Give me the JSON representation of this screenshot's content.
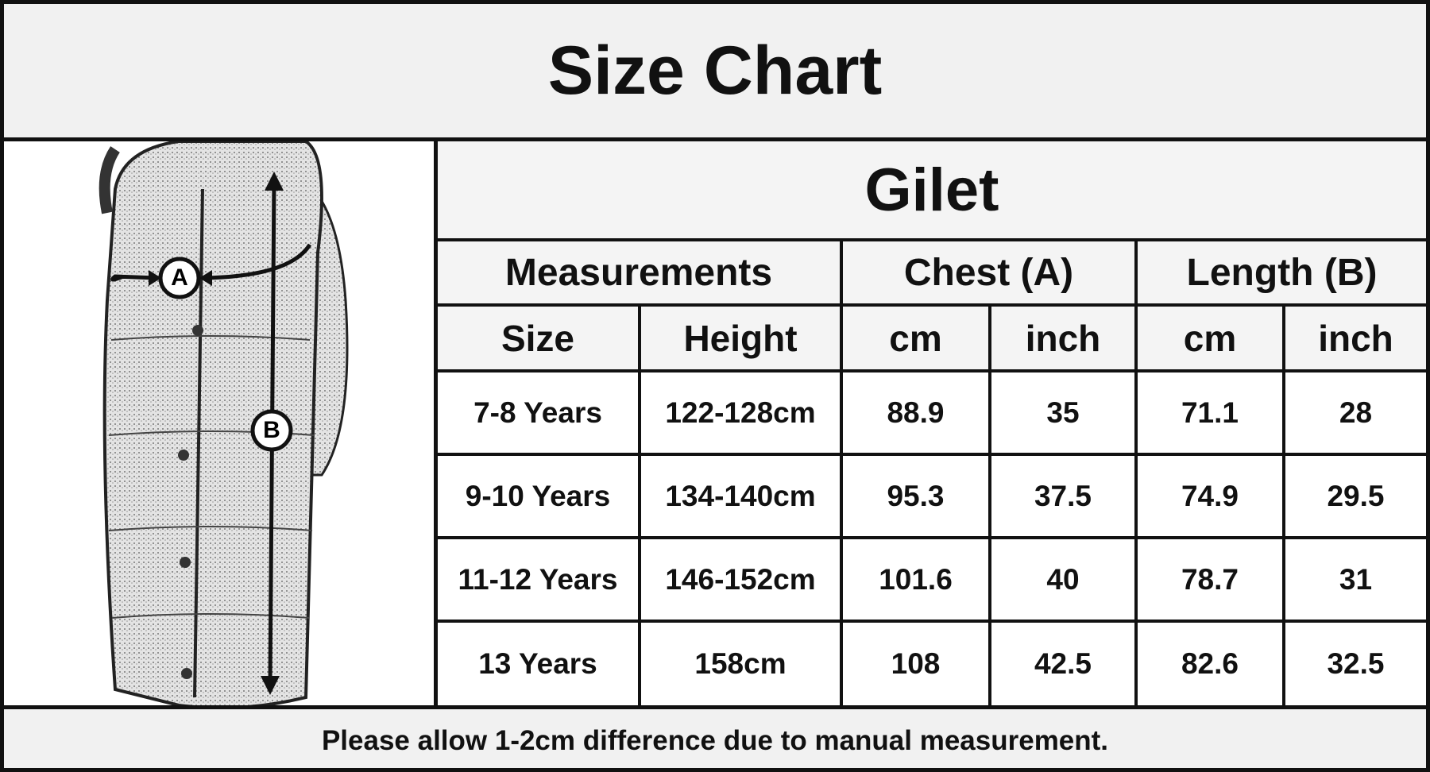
{
  "header": {
    "title": "Size Chart"
  },
  "illustration": {
    "labels": [
      "A",
      "B"
    ]
  },
  "table": {
    "title": "Gilet",
    "group_headers": [
      "Measurements",
      "Chest (A)",
      "Length (B)"
    ],
    "column_headers": [
      "Size",
      "Height",
      "cm",
      "inch",
      "cm",
      "inch"
    ],
    "rows": [
      [
        "7-8 Years",
        "122-128cm",
        "88.9",
        "35",
        "71.1",
        "28"
      ],
      [
        "9-10 Years",
        "134-140cm",
        "95.3",
        "37.5",
        "74.9",
        "29.5"
      ],
      [
        "11-12 Years",
        "146-152cm",
        "101.6",
        "40",
        "78.7",
        "31"
      ],
      [
        "13 Years",
        "158cm",
        "108",
        "42.5",
        "82.6",
        "32.5"
      ]
    ]
  },
  "footer": {
    "note": "Please allow 1-2cm difference due to manual measurement."
  }
}
